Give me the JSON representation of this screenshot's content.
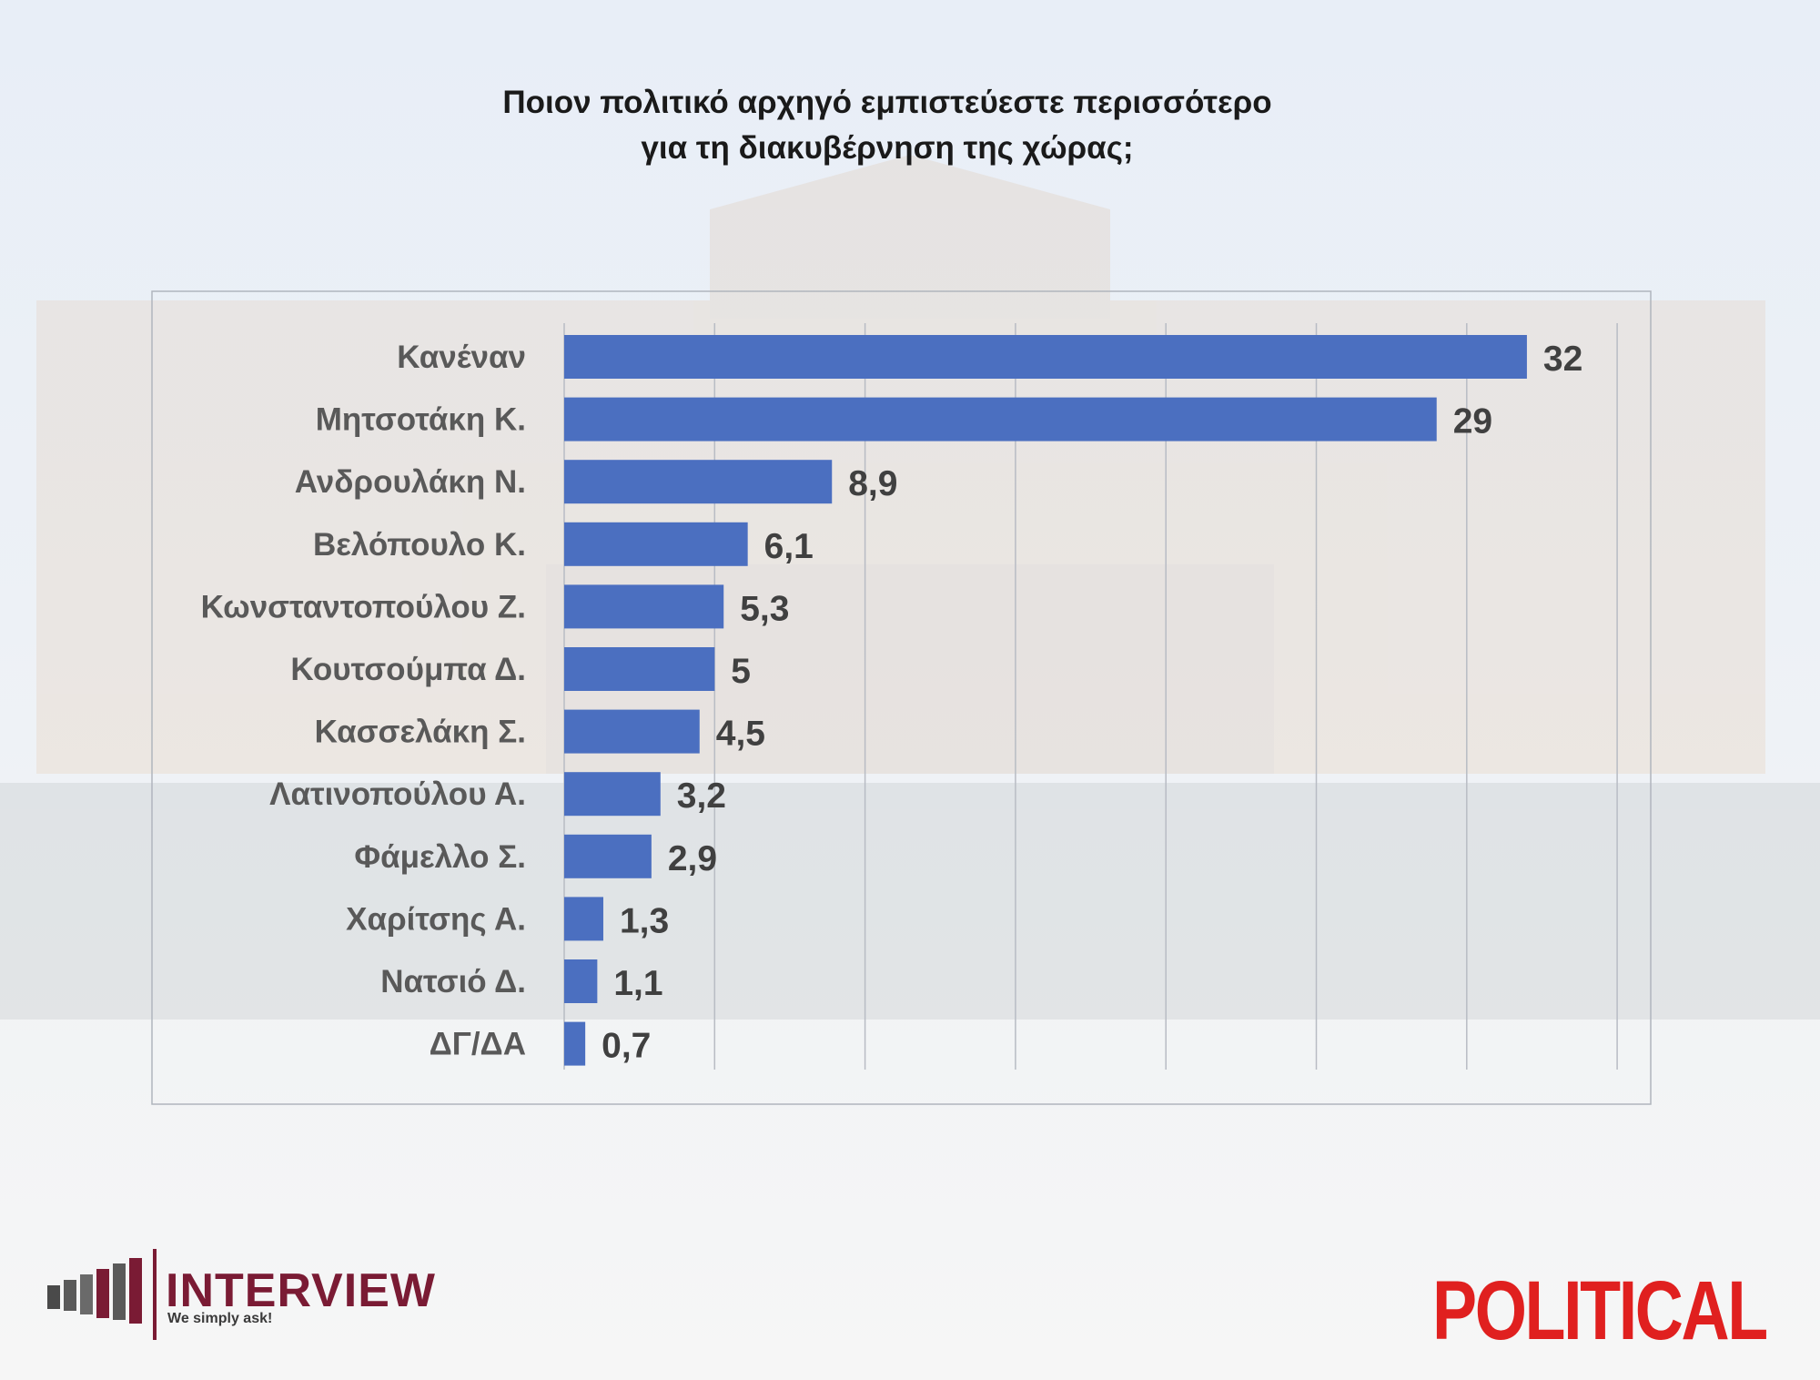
{
  "title_line1": "Ποιον πολιτικό αρχηγό εμπιστεύεστε περισσότερο",
  "title_line2": "για τη διακυβέρνηση της χώρας;",
  "colors": {
    "bar": "#4b6fc0",
    "political_red": "#e0201f",
    "interview_maroon": "#7a1b34"
  },
  "logos": {
    "interview_name": "INTERVIEW",
    "interview_tagline": "We simply ask!",
    "political": "POLITICAL"
  },
  "chart_data": {
    "type": "bar",
    "orientation": "horizontal",
    "categories": [
      "Κανέναν",
      "Μητσοτάκη Κ.",
      "Ανδρουλάκη Ν.",
      "Βελόπουλο Κ.",
      "Κωνσταντοπούλου Ζ.",
      "Κουτσούμπα Δ.",
      "Κασσελάκη Σ.",
      "Λατινοπούλου Α.",
      "Φάμελλο Σ.",
      "Χαρίτσης Α.",
      "Νατσιό Δ.",
      "ΔΓ/ΔΑ"
    ],
    "values": [
      32,
      29,
      8.9,
      6.1,
      5.3,
      5,
      4.5,
      3.2,
      2.9,
      1.3,
      1.1,
      0.7
    ],
    "value_labels": [
      "32",
      "29",
      "8,9",
      "6,1",
      "5,3",
      "5",
      "4,5",
      "3,2",
      "2,9",
      "1,3",
      "1,1",
      "0,7"
    ],
    "xlim": [
      0,
      35
    ],
    "grid": true,
    "xlabel": "",
    "ylabel": ""
  }
}
